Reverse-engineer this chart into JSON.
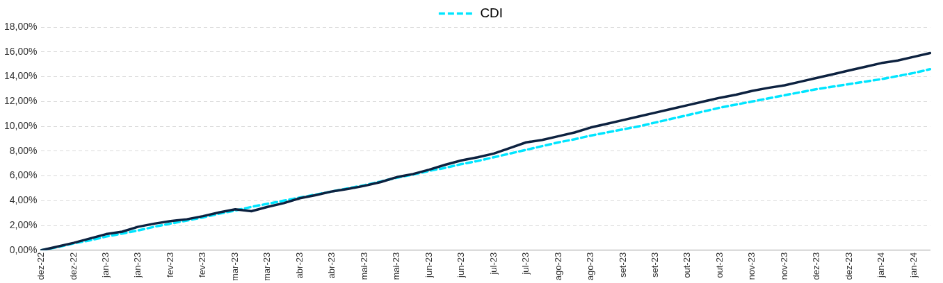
{
  "chart_data": {
    "type": "line",
    "categories": [
      "dez-22",
      null,
      "dez-22",
      null,
      "jan-23",
      null,
      "jan-23",
      null,
      "fev-23",
      null,
      "fev-23",
      null,
      "mar-23",
      null,
      "mar-23",
      null,
      "abr-23",
      null,
      "abr-23",
      null,
      "mai-23",
      null,
      "mai-23",
      null,
      "jun-23",
      null,
      "jun-23",
      null,
      "jul-23",
      null,
      "jul-23",
      null,
      "ago-23",
      null,
      "ago-23",
      null,
      "set-23",
      null,
      "set-23",
      null,
      "out-23",
      null,
      "out-23",
      null,
      "nov-23",
      null,
      "nov-23",
      null,
      "dez-23",
      null,
      "dez-23",
      null,
      "jan-24",
      null,
      "jan-24",
      null
    ],
    "series": [
      {
        "color": "#0d2240",
        "line_style": "solid",
        "values": [
          0,
          0.3,
          0.6,
          0.95,
          1.3,
          1.5,
          1.9,
          2.15,
          2.35,
          2.5,
          2.75,
          3.05,
          3.3,
          3.15,
          3.5,
          3.8,
          4.2,
          4.45,
          4.75,
          4.95,
          5.2,
          5.5,
          5.9,
          6.15,
          6.5,
          6.9,
          7.25,
          7.5,
          7.8,
          8.25,
          8.7,
          8.9,
          9.2,
          9.5,
          9.9,
          10.2,
          10.5,
          10.8,
          11.1,
          11.4,
          11.7,
          12.0,
          12.3,
          12.55,
          12.85,
          13.1,
          13.3,
          13.6,
          13.9,
          14.2,
          14.5,
          14.8,
          15.1,
          15.3,
          15.6,
          15.9
        ]
      },
      {
        "name": "CDI",
        "color": "#00e5ff",
        "line_style": "dashed",
        "values": [
          0,
          0.25,
          0.55,
          0.8,
          1.1,
          1.35,
          1.6,
          1.9,
          2.15,
          2.4,
          2.65,
          2.95,
          3.2,
          3.5,
          3.75,
          4.0,
          4.25,
          4.5,
          4.75,
          5.0,
          5.25,
          5.55,
          5.85,
          6.1,
          6.4,
          6.65,
          6.95,
          7.2,
          7.5,
          7.8,
          8.1,
          8.4,
          8.7,
          8.95,
          9.25,
          9.5,
          9.75,
          10.0,
          10.3,
          10.6,
          10.9,
          11.2,
          11.5,
          11.75,
          12.0,
          12.25,
          12.5,
          12.75,
          13.0,
          13.2,
          13.4,
          13.6,
          13.8,
          14.05,
          14.3,
          14.6
        ]
      }
    ],
    "ylim": [
      0,
      18
    ],
    "yticks": [
      {
        "value": 0,
        "label": "0,00%"
      },
      {
        "value": 2,
        "label": "2,00%"
      },
      {
        "value": 4,
        "label": "4,00%"
      },
      {
        "value": 6,
        "label": "6,00%"
      },
      {
        "value": 8,
        "label": "8,00%"
      },
      {
        "value": 10,
        "label": "10,00%"
      },
      {
        "value": 12,
        "label": "12,00%"
      },
      {
        "value": 14,
        "label": "14,00%"
      },
      {
        "value": 16,
        "label": "16,00%"
      },
      {
        "value": 18,
        "label": "18,00%"
      }
    ],
    "grid": "y",
    "legend": "top",
    "marker": "none"
  }
}
